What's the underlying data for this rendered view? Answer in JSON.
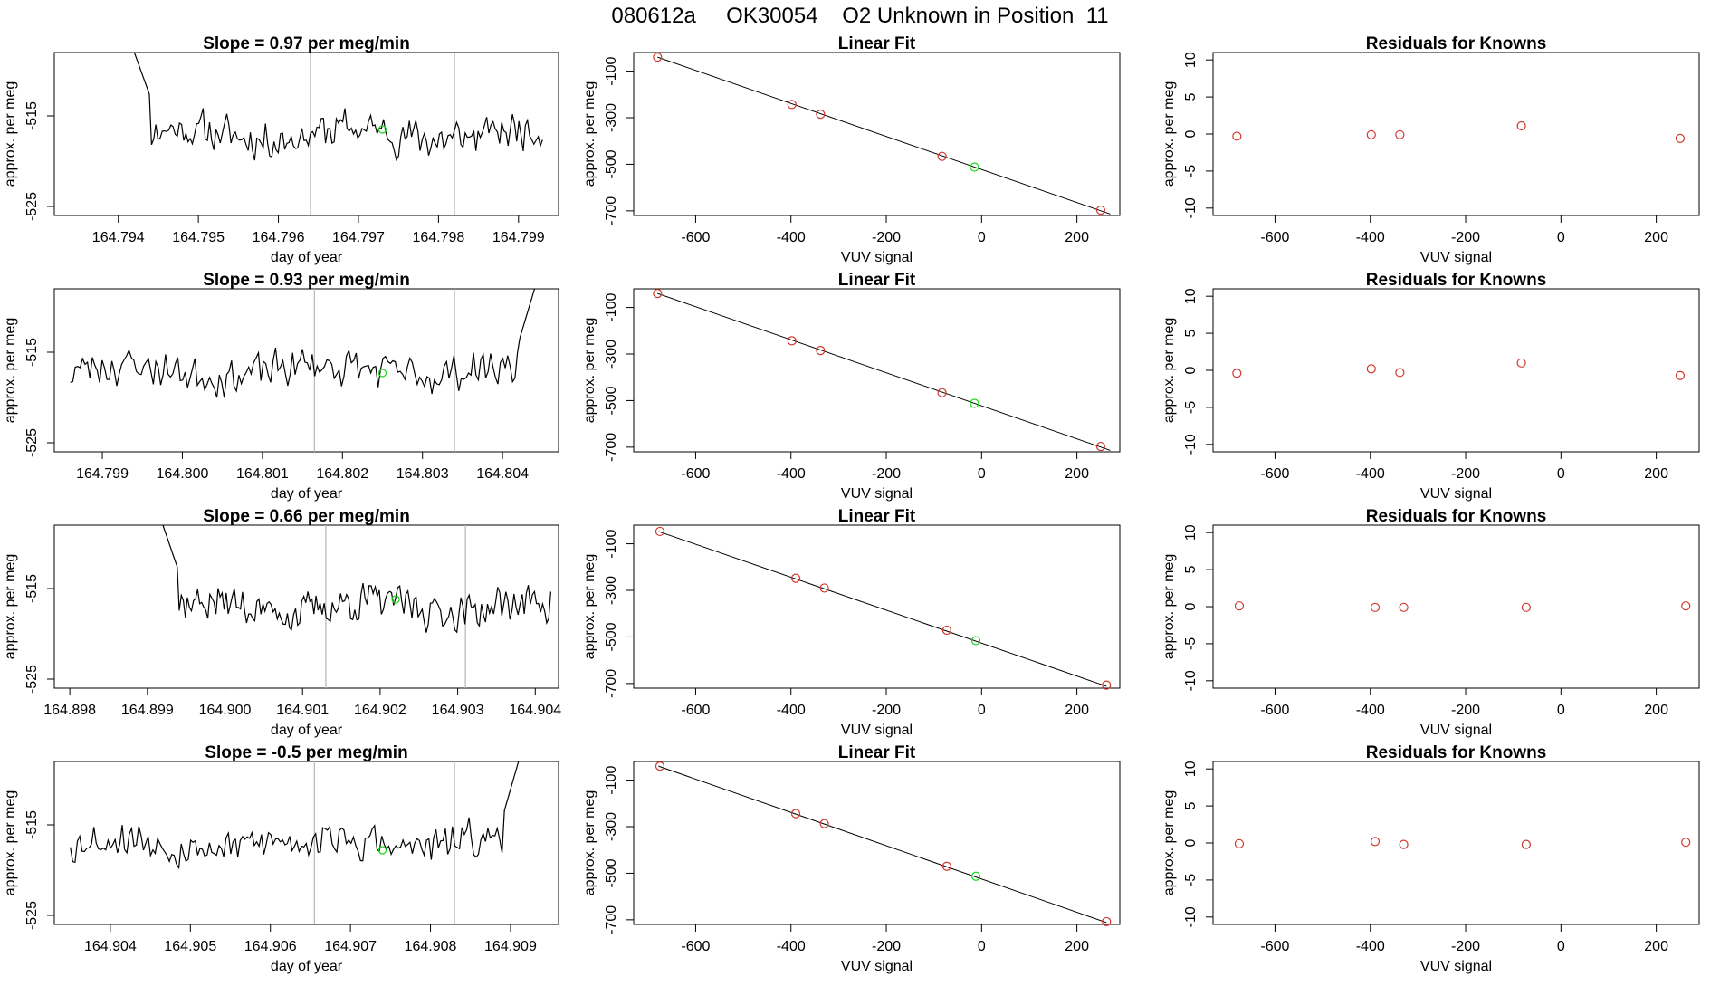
{
  "header": {
    "title": "080612a     OK30054    O2 Unknown in Position  11"
  },
  "style": {
    "trace_color": "#000000",
    "marker_red": "#d2382c",
    "marker_green": "#18d818",
    "marker_line_color": "#bbbbbb",
    "frame_color": "#000000"
  },
  "chart_data": [
    {
      "type": "line",
      "panel": "row1-time-series",
      "title": "Slope =  0.97  per meg/min",
      "xlabel": "day of year",
      "ylabel": "approx. per meg",
      "xlim": [
        164.7932,
        164.7995
      ],
      "ylim": [
        -526,
        -508
      ],
      "xticks": [
        "164.794",
        "164.795",
        "164.796",
        "164.797",
        "164.798",
        "164.799"
      ],
      "yticks": [
        "-525",
        "-515"
      ],
      "vlines": [
        164.7964,
        164.7982
      ],
      "start": 164.7942,
      "end": 164.7993,
      "spike": "start",
      "seed": 11,
      "green_point": {
        "x": 164.7973,
        "y": -516.5
      }
    },
    {
      "type": "line",
      "panel": "row2-time-series",
      "title": "Slope =  0.93  per meg/min",
      "xlabel": "day of year",
      "ylabel": "approx. per meg",
      "xlim": [
        164.7984,
        164.8047
      ],
      "ylim": [
        -526,
        -508
      ],
      "xticks": [
        "164.799",
        "164.800",
        "164.801",
        "164.802",
        "164.803",
        "164.804"
      ],
      "yticks": [
        "-525",
        "-515"
      ],
      "vlines": [
        164.80165,
        164.8034
      ],
      "start": 164.7986,
      "end": 164.8044,
      "spike": "end",
      "seed": 23,
      "green_point": {
        "x": 164.8025,
        "y": -517.3
      }
    },
    {
      "type": "line",
      "panel": "row3-time-series",
      "title": "Slope =  0.66  per meg/min",
      "xlabel": "day of year",
      "ylabel": "approx. per meg",
      "xlim": [
        164.8978,
        164.9043
      ],
      "ylim": [
        -526,
        -508
      ],
      "xticks": [
        "164.898",
        "164.899",
        "164.900",
        "164.901",
        "164.902",
        "164.903",
        "164.904"
      ],
      "yticks": [
        "-525",
        "-515"
      ],
      "vlines": [
        164.9013,
        164.9031
      ],
      "start": 164.8992,
      "end": 164.9042,
      "spike": "start",
      "seed": 37,
      "green_point": {
        "x": 164.9022,
        "y": -516.2
      }
    },
    {
      "type": "line",
      "panel": "row4-time-series",
      "title": "Slope =  -0.5  per meg/min",
      "xlabel": "day of year",
      "ylabel": "approx. per meg",
      "xlim": [
        164.9033,
        164.9096
      ],
      "ylim": [
        -526,
        -508
      ],
      "xticks": [
        "164.904",
        "164.905",
        "164.906",
        "164.907",
        "164.908",
        "164.909"
      ],
      "yticks": [
        "-525",
        "-515"
      ],
      "vlines": [
        164.90655,
        164.9083
      ],
      "start": 164.9035,
      "end": 164.9091,
      "spike": "end",
      "seed": 53,
      "green_point": {
        "x": 164.9074,
        "y": -517.8
      }
    },
    {
      "type": "scatter",
      "panel": "row1-linear-fit",
      "title": "Linear Fit",
      "xlabel": "VUV signal",
      "ylabel": "approx. per meg",
      "xlim": [
        -730,
        290
      ],
      "ylim": [
        -720,
        -20
      ],
      "xticks": [
        -600,
        -400,
        -200,
        0,
        200
      ],
      "yticks": [
        -100,
        -300,
        -500,
        -700
      ],
      "fit_line": [
        [
          -680,
          -40
        ],
        [
          270,
          -714
        ]
      ],
      "knowns": [
        [
          -680,
          -40
        ],
        [
          -398,
          -243
        ],
        [
          -338,
          -285
        ],
        [
          -83,
          -466
        ],
        [
          250,
          -697
        ]
      ],
      "unknown": [
        [
          -15,
          -512
        ]
      ]
    },
    {
      "type": "scatter",
      "panel": "row2-linear-fit",
      "title": "Linear Fit",
      "xlabel": "VUV signal",
      "ylabel": "approx. per meg",
      "xlim": [
        -730,
        290
      ],
      "ylim": [
        -720,
        -20
      ],
      "xticks": [
        -600,
        -400,
        -200,
        0,
        200
      ],
      "yticks": [
        -100,
        -300,
        -500,
        -700
      ],
      "fit_line": [
        [
          -680,
          -40
        ],
        [
          270,
          -714
        ]
      ],
      "knowns": [
        [
          -680,
          -40
        ],
        [
          -398,
          -243
        ],
        [
          -338,
          -285
        ],
        [
          -83,
          -466
        ],
        [
          250,
          -697
        ]
      ],
      "unknown": [
        [
          -15,
          -512
        ]
      ]
    },
    {
      "type": "scatter",
      "panel": "row3-linear-fit",
      "title": "Linear Fit",
      "xlabel": "VUV signal",
      "ylabel": "approx. per meg",
      "xlim": [
        -730,
        290
      ],
      "ylim": [
        -720,
        -20
      ],
      "xticks": [
        -600,
        -400,
        -200,
        0,
        200
      ],
      "yticks": [
        -100,
        -300,
        -500,
        -700
      ],
      "fit_line": [
        [
          -678,
          -47
        ],
        [
          262,
          -712
        ]
      ],
      "knowns": [
        [
          -675,
          -47
        ],
        [
          -390,
          -248
        ],
        [
          -330,
          -290
        ],
        [
          -73,
          -471
        ],
        [
          262,
          -707
        ]
      ],
      "unknown": [
        [
          -12,
          -516
        ]
      ]
    },
    {
      "type": "scatter",
      "panel": "row4-linear-fit",
      "title": "Linear Fit",
      "xlabel": "VUV signal",
      "ylabel": "approx. per meg",
      "xlim": [
        -730,
        290
      ],
      "ylim": [
        -720,
        -20
      ],
      "xticks": [
        -600,
        -400,
        -200,
        0,
        200
      ],
      "yticks": [
        -100,
        -300,
        -500,
        -700
      ],
      "fit_line": [
        [
          -678,
          -40
        ],
        [
          262,
          -712
        ]
      ],
      "knowns": [
        [
          -675,
          -40
        ],
        [
          -390,
          -244
        ],
        [
          -330,
          -287
        ],
        [
          -73,
          -470
        ],
        [
          262,
          -708
        ]
      ],
      "unknown": [
        [
          -12,
          -513
        ]
      ]
    },
    {
      "type": "scatter",
      "panel": "row1-residuals",
      "title": "Residuals for Knowns",
      "xlabel": "VUV signal",
      "ylabel": "approx. per meg",
      "xlim": [
        -730,
        290
      ],
      "ylim": [
        -11,
        11
      ],
      "xticks": [
        -600,
        -400,
        -200,
        0,
        200
      ],
      "yticks": [
        -10,
        -5,
        0,
        5,
        10
      ],
      "points": [
        [
          -680,
          -0.3
        ],
        [
          -398,
          -0.1
        ],
        [
          -338,
          -0.1
        ],
        [
          -83,
          1.1
        ],
        [
          250,
          -0.6
        ]
      ]
    },
    {
      "type": "scatter",
      "panel": "row2-residuals",
      "title": "Residuals for Knowns",
      "xlabel": "VUV signal",
      "ylabel": "approx. per meg",
      "xlim": [
        -730,
        290
      ],
      "ylim": [
        -11,
        11
      ],
      "xticks": [
        -600,
        -400,
        -200,
        0,
        200
      ],
      "yticks": [
        -10,
        -5,
        0,
        5,
        10
      ],
      "points": [
        [
          -680,
          -0.4
        ],
        [
          -398,
          0.2
        ],
        [
          -338,
          -0.3
        ],
        [
          -83,
          1.0
        ],
        [
          250,
          -0.7
        ]
      ]
    },
    {
      "type": "scatter",
      "panel": "row3-residuals",
      "title": "Residuals for Knowns",
      "xlabel": "VUV signal",
      "ylabel": "approx. per meg",
      "xlim": [
        -730,
        290
      ],
      "ylim": [
        -11,
        11
      ],
      "xticks": [
        -600,
        -400,
        -200,
        0,
        200
      ],
      "yticks": [
        -10,
        -5,
        0,
        5,
        10
      ],
      "points": [
        [
          -675,
          0.1
        ],
        [
          -390,
          -0.1
        ],
        [
          -330,
          -0.1
        ],
        [
          -73,
          -0.1
        ],
        [
          262,
          0.1
        ]
      ]
    },
    {
      "type": "scatter",
      "panel": "row4-residuals",
      "title": "Residuals for Knowns",
      "xlabel": "VUV signal",
      "ylabel": "approx. per meg",
      "xlim": [
        -730,
        290
      ],
      "ylim": [
        -11,
        11
      ],
      "xticks": [
        -600,
        -400,
        -200,
        0,
        200
      ],
      "yticks": [
        -10,
        -5,
        0,
        5,
        10
      ],
      "points": [
        [
          -675,
          -0.1
        ],
        [
          -390,
          0.2
        ],
        [
          -330,
          -0.2
        ],
        [
          -73,
          -0.2
        ],
        [
          262,
          0.1
        ]
      ]
    }
  ]
}
